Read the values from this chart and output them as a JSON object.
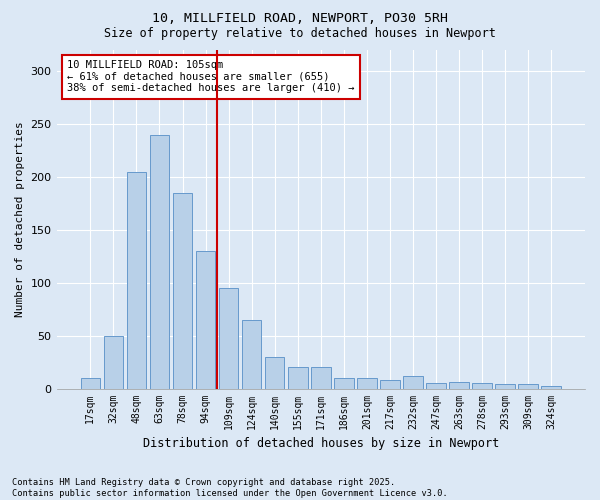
{
  "title1": "10, MILLFIELD ROAD, NEWPORT, PO30 5RH",
  "title2": "Size of property relative to detached houses in Newport",
  "xlabel": "Distribution of detached houses by size in Newport",
  "ylabel": "Number of detached properties",
  "categories": [
    "17sqm",
    "32sqm",
    "48sqm",
    "63sqm",
    "78sqm",
    "94sqm",
    "109sqm",
    "124sqm",
    "140sqm",
    "155sqm",
    "171sqm",
    "186sqm",
    "201sqm",
    "217sqm",
    "232sqm",
    "247sqm",
    "263sqm",
    "278sqm",
    "293sqm",
    "309sqm",
    "324sqm"
  ],
  "values": [
    10,
    50,
    205,
    240,
    185,
    130,
    95,
    65,
    30,
    20,
    20,
    10,
    10,
    8,
    12,
    5,
    6,
    5,
    4,
    4,
    2
  ],
  "bar_color": "#b8d0e8",
  "bar_edge_color": "#6699cc",
  "vline_x_index": 6,
  "vline_color": "#cc0000",
  "annotation_text": "10 MILLFIELD ROAD: 105sqm\n← 61% of detached houses are smaller (655)\n38% of semi-detached houses are larger (410) →",
  "annotation_box_facecolor": "#ffffff",
  "annotation_box_edgecolor": "#cc0000",
  "background_color": "#dce8f5",
  "grid_color": "#ffffff",
  "footnote": "Contains HM Land Registry data © Crown copyright and database right 2025.\nContains public sector information licensed under the Open Government Licence v3.0.",
  "ylim": [
    0,
    320
  ],
  "yticks": [
    0,
    50,
    100,
    150,
    200,
    250,
    300
  ]
}
